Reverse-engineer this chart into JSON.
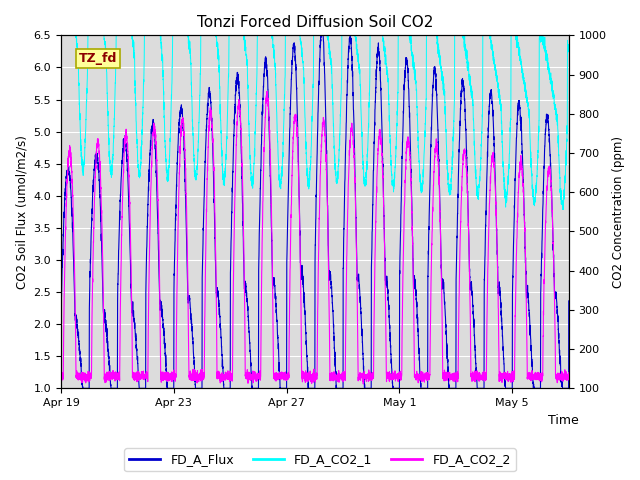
{
  "title": "Tonzi Forced Diffusion Soil CO2",
  "xlabel": "Time",
  "ylabel_left": "CO2 Soil Flux (umol/m2/s)",
  "ylabel_right": "CO2 Concentration (ppm)",
  "ylim_left": [
    1.0,
    6.5
  ],
  "ylim_right": [
    100,
    1000
  ],
  "yticks_left": [
    1.0,
    1.5,
    2.0,
    2.5,
    3.0,
    3.5,
    4.0,
    4.5,
    5.0,
    5.5,
    6.0,
    6.5
  ],
  "yticks_right": [
    100,
    200,
    300,
    400,
    500,
    600,
    700,
    800,
    900,
    1000
  ],
  "xtick_positions": [
    0,
    4,
    8,
    12,
    16
  ],
  "xtick_labels": [
    "Apr 19",
    "Apr 23",
    "Apr 27",
    "May 1",
    "May 5"
  ],
  "xlim": [
    0,
    18
  ],
  "color_flux": "#0000CD",
  "color_co2_1": "#00FFFF",
  "color_co2_2": "#FF00FF",
  "legend_labels": [
    "FD_A_Flux",
    "FD_A_CO2_1",
    "FD_A_CO2_2"
  ],
  "tag_text": "TZ_fd",
  "tag_color": "#8B0000",
  "tag_bg": "#FFFF99",
  "tag_border": "#AAAA00",
  "bg_color": "#DCDCDC",
  "grid_color": "#FFFFFF",
  "n_days": 18,
  "n_points": 5000
}
